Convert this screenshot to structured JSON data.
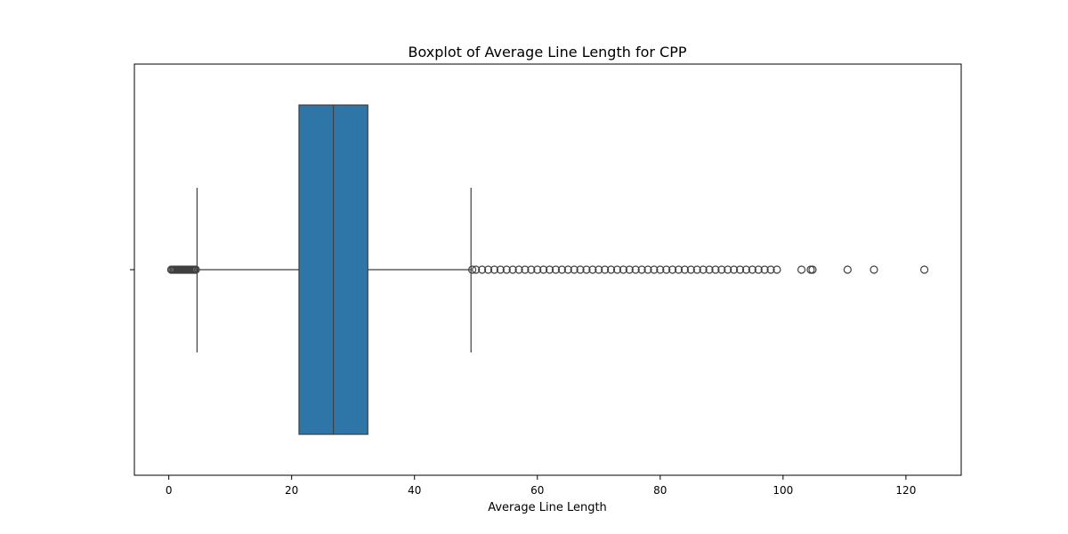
{
  "chart_data": {
    "type": "boxplot",
    "title": "Boxplot of Average Line Length for CPP",
    "xlabel": "Average Line Length",
    "ylabel": "",
    "xlim": [
      -5.6,
      129
    ],
    "x_ticks": [
      0,
      20,
      40,
      60,
      80,
      100,
      120
    ],
    "orientation": "horizontal",
    "box_color": "#2f76a8",
    "line_color": "#3f3f3f",
    "stats": {
      "whisker_low": 4.6,
      "q1": 21.2,
      "median": 26.8,
      "q3": 32.4,
      "whisker_high": 49.2
    },
    "outliers": [
      0.4,
      0.6,
      0.8,
      1.0,
      1.2,
      1.4,
      1.6,
      1.8,
      2.0,
      2.2,
      2.4,
      2.6,
      2.8,
      3.0,
      3.2,
      3.4,
      3.6,
      3.8,
      4.0,
      4.2,
      4.4,
      49.4,
      50.0,
      51.0,
      52.0,
      53.0,
      54.0,
      55.0,
      56.0,
      57.0,
      58.0,
      59.0,
      60.0,
      61.0,
      62.0,
      63.0,
      64.0,
      65.0,
      66.0,
      67.0,
      68.0,
      69.0,
      70.0,
      71.0,
      72.0,
      73.0,
      74.0,
      75.0,
      76.0,
      77.0,
      78.0,
      79.0,
      80.0,
      81.0,
      82.0,
      83.0,
      84.0,
      85.0,
      86.0,
      87.0,
      88.0,
      89.0,
      90.0,
      91.0,
      92.0,
      93.0,
      94.0,
      95.0,
      96.0,
      97.0,
      98.0,
      99.0,
      103.0,
      104.5,
      104.8,
      110.5,
      114.8,
      123.0
    ]
  }
}
